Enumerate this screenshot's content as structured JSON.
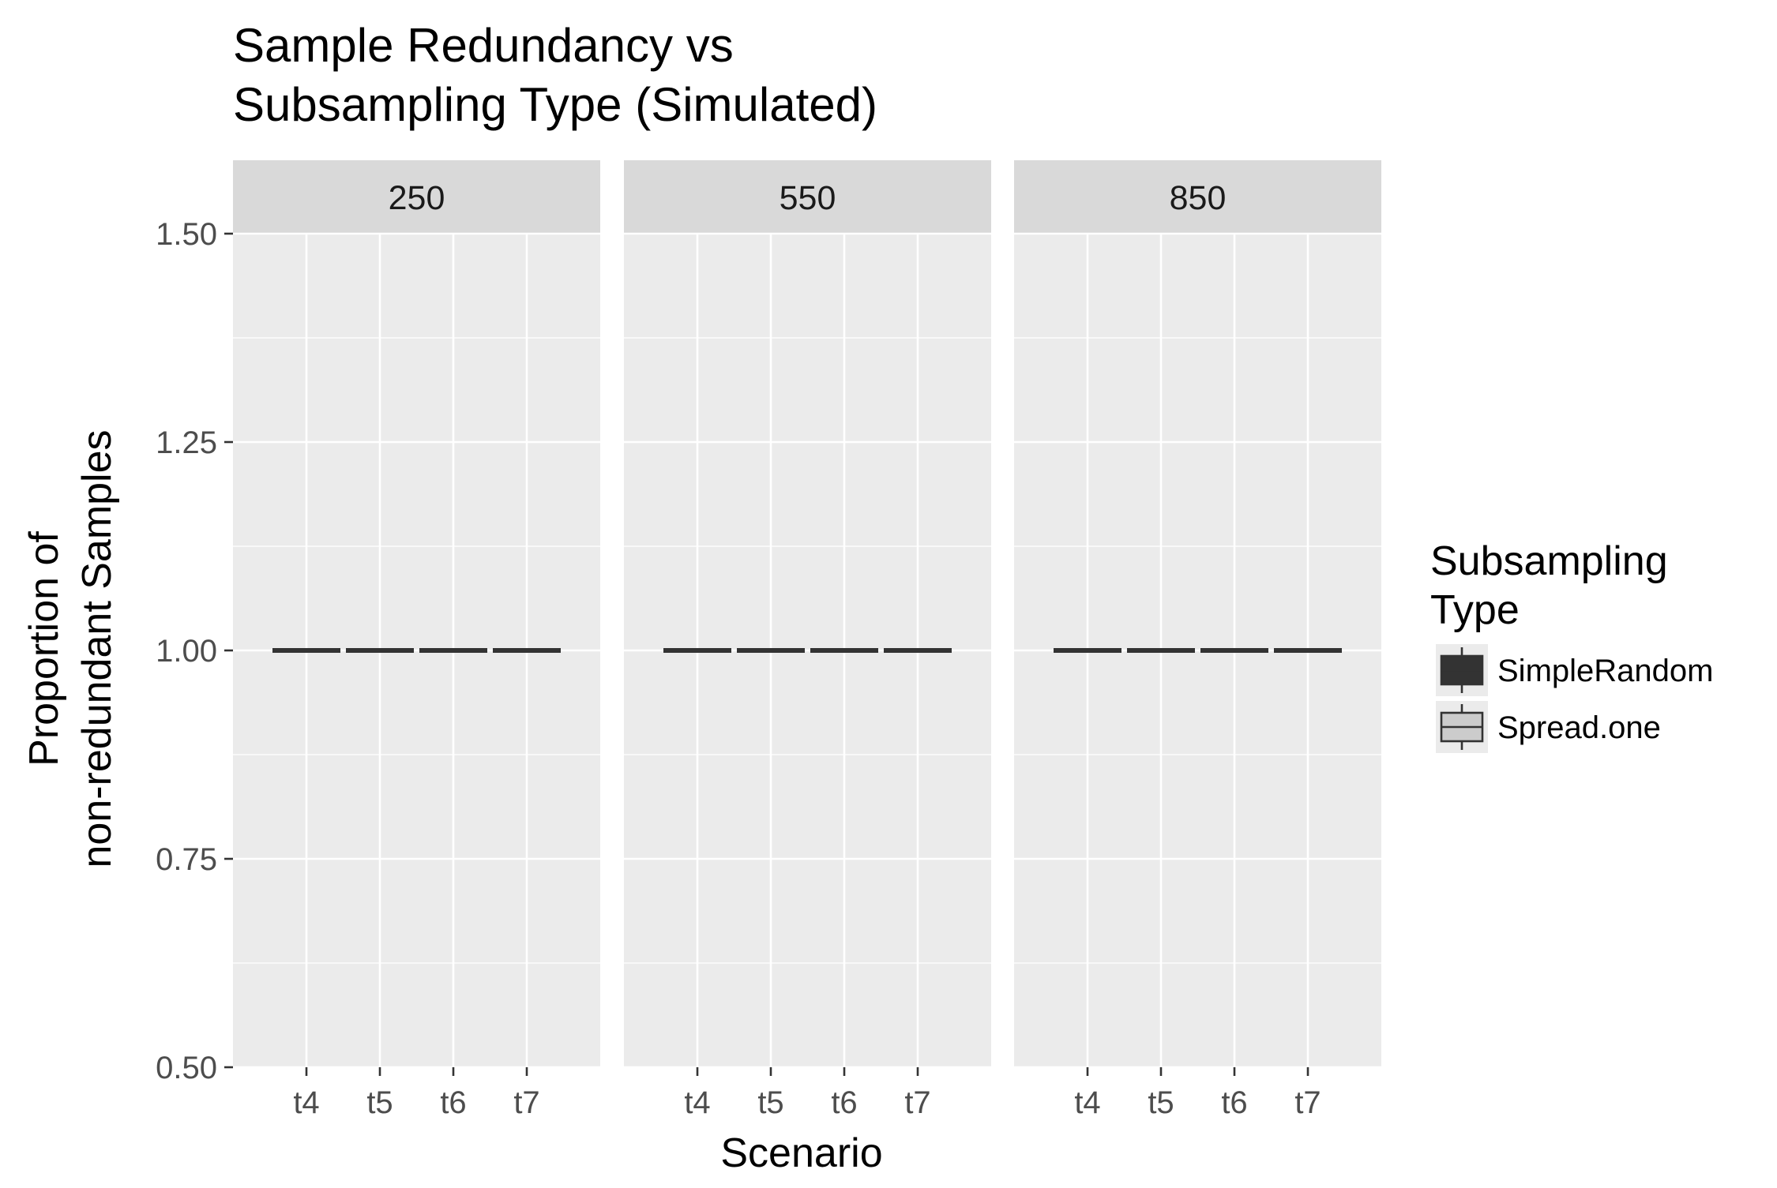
{
  "chart_data": {
    "type": "boxplot",
    "title_lines": [
      "Sample Redundancy vs",
      "Subsampling Type (Simulated)"
    ],
    "xlabel": "Scenario",
    "ylabel_lines": [
      "Proportion of",
      "non-redundant Samples"
    ],
    "ylim": [
      0.5,
      1.5
    ],
    "y_ticks": [
      0.5,
      0.75,
      1.0,
      1.25,
      1.5
    ],
    "y_tick_labels": [
      "0.50",
      "0.75",
      "1.00",
      "1.25",
      "1.50"
    ],
    "categories": [
      "t4",
      "t5",
      "t6",
      "t7"
    ],
    "grid": true,
    "facet_labels": [
      "250",
      "550",
      "850"
    ],
    "legend": {
      "title_lines": [
        "Subsampling",
        "Type"
      ],
      "position": "right",
      "items": [
        {
          "label": "SimpleRandom",
          "fill": "#333333"
        },
        {
          "label": "Spread.one",
          "fill": "#cccccc"
        }
      ]
    },
    "series": [
      {
        "name": "SimpleRandom",
        "facet": "250",
        "values": [
          1.0,
          1.0,
          1.0,
          1.0
        ]
      },
      {
        "name": "Spread.one",
        "facet": "250",
        "values": [
          1.0,
          1.0,
          1.0,
          1.0
        ]
      },
      {
        "name": "SimpleRandom",
        "facet": "550",
        "values": [
          1.0,
          1.0,
          1.0,
          1.0
        ]
      },
      {
        "name": "Spread.one",
        "facet": "550",
        "values": [
          1.0,
          1.0,
          1.0,
          1.0
        ]
      },
      {
        "name": "SimpleRandom",
        "facet": "850",
        "values": [
          1.0,
          1.0,
          1.0,
          1.0
        ]
      },
      {
        "name": "Spread.one",
        "facet": "850",
        "values": [
          1.0,
          1.0,
          1.0,
          1.0
        ]
      }
    ],
    "colors": {
      "panel_bg": "#ebebeb",
      "strip_bg": "#d9d9d9",
      "grid": "#ffffff",
      "median_line": "#333333"
    }
  }
}
